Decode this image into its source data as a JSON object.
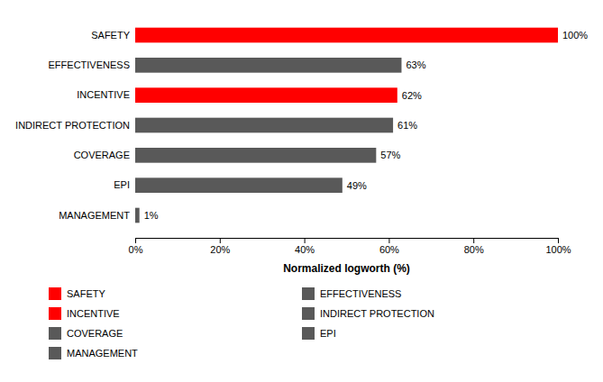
{
  "chart_data": {
    "type": "bar",
    "orientation": "horizontal",
    "categories": [
      "SAFETY",
      "EFFECTIVENESS",
      "INCENTIVE",
      "INDIRECT PROTECTION",
      "COVERAGE",
      "EPI",
      "MANAGEMENT"
    ],
    "values": [
      100,
      63,
      62,
      61,
      57,
      49,
      1
    ],
    "value_labels": [
      "100%",
      "63%",
      "62%",
      "61%",
      "57%",
      "49%",
      "1%"
    ],
    "colors": [
      "#ff0000",
      "#595959",
      "#ff0000",
      "#595959",
      "#595959",
      "#595959",
      "#595959"
    ],
    "data_labels": true,
    "xlabel": "Normalized logworth (%)",
    "xlim": [
      0,
      100
    ],
    "xticks": [
      {
        "value": 0,
        "label": "0%"
      },
      {
        "value": 20,
        "label": "20%"
      },
      {
        "value": 40,
        "label": "40%"
      },
      {
        "value": 60,
        "label": "60%"
      },
      {
        "value": 80,
        "label": "80%"
      },
      {
        "value": 100,
        "label": "100%"
      }
    ],
    "grid": false,
    "legend": "bottom"
  }
}
